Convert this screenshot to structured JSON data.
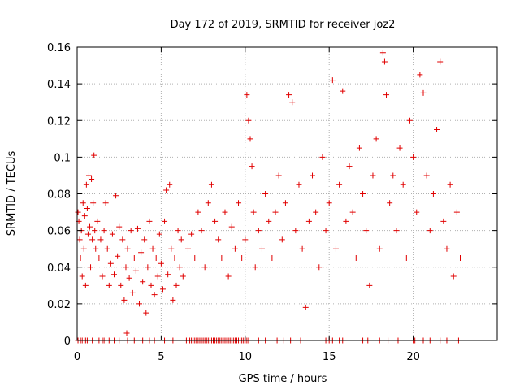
{
  "chart_data": {
    "type": "scatter",
    "title": "Day 172 of 2019, SRMTID for receiver joz2",
    "xlabel": "GPS time / hours",
    "ylabel": "SRMTID / TECUs",
    "xlim": [
      0,
      25
    ],
    "ylim": [
      0,
      0.16
    ],
    "xticks": [
      0,
      5,
      10,
      15,
      20
    ],
    "xtick_labels": [
      "0",
      "5",
      "10",
      "15",
      "20"
    ],
    "yticks": [
      0,
      0.02,
      0.04,
      0.06,
      0.08,
      0.1,
      0.12,
      0.14,
      0.16
    ],
    "ytick_labels": [
      "0",
      "0.02",
      "0.04",
      "0.06",
      "0.08",
      "0.1",
      "0.12",
      "0.14",
      "0.16"
    ],
    "grid": true,
    "marker": "+",
    "color": "#e00000",
    "series": [
      {
        "points": [
          [
            0.05,
            0.07
          ],
          [
            0.1,
            0.065
          ],
          [
            0.15,
            0.055
          ],
          [
            0.2,
            0.045
          ],
          [
            0.25,
            0.06
          ],
          [
            0.3,
            0.035
          ],
          [
            0.35,
            0.075
          ],
          [
            0.4,
            0.05
          ],
          [
            0.45,
            0.068
          ],
          [
            0.5,
            0.03
          ],
          [
            0.55,
            0.085
          ],
          [
            0.6,
            0.072
          ],
          [
            0.65,
            0.058
          ],
          [
            0.7,
            0.09
          ],
          [
            0.75,
            0.062
          ],
          [
            0.8,
            0.04
          ],
          [
            0.85,
            0.088
          ],
          [
            0.9,
            0.055
          ],
          [
            0.95,
            0.075
          ],
          [
            1.0,
            0.101
          ],
          [
            1.05,
            0.06
          ],
          [
            1.1,
            0.05
          ],
          [
            1.2,
            0.065
          ],
          [
            1.3,
            0.045
          ],
          [
            1.4,
            0.055
          ],
          [
            1.5,
            0.035
          ],
          [
            1.6,
            0.06
          ],
          [
            1.7,
            0.075
          ],
          [
            1.8,
            0.05
          ],
          [
            1.9,
            0.03
          ],
          [
            2.0,
            0.042
          ],
          [
            2.1,
            0.058
          ],
          [
            2.2,
            0.036
          ],
          [
            2.3,
            0.079
          ],
          [
            2.4,
            0.046
          ],
          [
            2.5,
            0.062
          ],
          [
            2.6,
            0.03
          ],
          [
            2.7,
            0.055
          ],
          [
            2.8,
            0.022
          ],
          [
            2.9,
            0.04
          ],
          [
            2.95,
            0.004
          ],
          [
            3.0,
            0.05
          ],
          [
            3.1,
            0.034
          ],
          [
            3.2,
            0.06
          ],
          [
            3.3,
            0.026
          ],
          [
            3.4,
            0.045
          ],
          [
            3.5,
            0.038
          ],
          [
            3.6,
            0.061
          ],
          [
            3.7,
            0.02
          ],
          [
            3.8,
            0.048
          ],
          [
            3.9,
            0.032
          ],
          [
            4.0,
            0.055
          ],
          [
            4.1,
            0.015
          ],
          [
            4.2,
            0.04
          ],
          [
            4.3,
            0.065
          ],
          [
            4.4,
            0.03
          ],
          [
            4.5,
            0.05
          ],
          [
            4.6,
            0.025
          ],
          [
            4.7,
            0.045
          ],
          [
            4.8,
            0.035
          ],
          [
            4.9,
            0.058
          ],
          [
            5.0,
            0.042
          ],
          [
            5.1,
            0.028
          ],
          [
            5.2,
            0.065
          ],
          [
            5.3,
            0.082
          ],
          [
            5.4,
            0.036
          ],
          [
            5.5,
            0.085
          ],
          [
            5.6,
            0.05
          ],
          [
            5.7,
            0.022
          ],
          [
            5.8,
            0.045
          ],
          [
            5.9,
            0.03
          ],
          [
            6.0,
            0.06
          ],
          [
            6.1,
            0.04
          ],
          [
            6.2,
            0.055
          ],
          [
            6.3,
            0.035
          ],
          [
            6.6,
            0.05
          ],
          [
            6.8,
            0.058
          ],
          [
            7.0,
            0.045
          ],
          [
            7.2,
            0.07
          ],
          [
            7.4,
            0.06
          ],
          [
            7.6,
            0.04
          ],
          [
            7.8,
            0.075
          ],
          [
            8.0,
            0.085
          ],
          [
            8.2,
            0.065
          ],
          [
            8.4,
            0.055
          ],
          [
            8.6,
            0.045
          ],
          [
            8.8,
            0.07
          ],
          [
            9.0,
            0.035
          ],
          [
            9.2,
            0.062
          ],
          [
            9.4,
            0.05
          ],
          [
            9.6,
            0.075
          ],
          [
            9.8,
            0.045
          ],
          [
            10.0,
            0.055
          ],
          [
            10.1,
            0.134
          ],
          [
            10.2,
            0.12
          ],
          [
            10.3,
            0.11
          ],
          [
            10.4,
            0.095
          ],
          [
            10.5,
            0.07
          ],
          [
            10.6,
            0.04
          ],
          [
            10.8,
            0.06
          ],
          [
            11.0,
            0.05
          ],
          [
            11.2,
            0.08
          ],
          [
            11.4,
            0.065
          ],
          [
            11.6,
            0.045
          ],
          [
            11.8,
            0.07
          ],
          [
            12.0,
            0.09
          ],
          [
            12.2,
            0.055
          ],
          [
            12.4,
            0.075
          ],
          [
            12.6,
            0.134
          ],
          [
            12.8,
            0.13
          ],
          [
            13.0,
            0.06
          ],
          [
            13.2,
            0.085
          ],
          [
            13.4,
            0.05
          ],
          [
            13.6,
            0.018
          ],
          [
            13.8,
            0.065
          ],
          [
            14.0,
            0.09
          ],
          [
            14.2,
            0.07
          ],
          [
            14.4,
            0.04
          ],
          [
            14.6,
            0.1
          ],
          [
            14.8,
            0.06
          ],
          [
            15.0,
            0.075
          ],
          [
            15.2,
            0.142
          ],
          [
            15.4,
            0.05
          ],
          [
            15.6,
            0.085
          ],
          [
            15.8,
            0.136
          ],
          [
            16.0,
            0.065
          ],
          [
            16.2,
            0.095
          ],
          [
            16.4,
            0.07
          ],
          [
            16.6,
            0.045
          ],
          [
            16.8,
            0.105
          ],
          [
            17.0,
            0.08
          ],
          [
            17.2,
            0.06
          ],
          [
            17.4,
            0.03
          ],
          [
            17.6,
            0.09
          ],
          [
            17.8,
            0.11
          ],
          [
            18.0,
            0.05
          ],
          [
            18.2,
            0.157
          ],
          [
            18.3,
            0.152
          ],
          [
            18.4,
            0.134
          ],
          [
            18.6,
            0.075
          ],
          [
            18.8,
            0.09
          ],
          [
            19.0,
            0.06
          ],
          [
            19.2,
            0.105
          ],
          [
            19.4,
            0.085
          ],
          [
            19.6,
            0.045
          ],
          [
            19.8,
            0.12
          ],
          [
            20.0,
            0.1
          ],
          [
            20.2,
            0.07
          ],
          [
            20.4,
            0.145
          ],
          [
            20.6,
            0.135
          ],
          [
            20.8,
            0.09
          ],
          [
            21.0,
            0.06
          ],
          [
            21.2,
            0.08
          ],
          [
            21.4,
            0.115
          ],
          [
            21.6,
            0.152
          ],
          [
            21.8,
            0.065
          ],
          [
            22.0,
            0.05
          ],
          [
            22.2,
            0.085
          ],
          [
            22.4,
            0.035
          ],
          [
            22.6,
            0.07
          ],
          [
            22.8,
            0.045
          ]
        ]
      }
    ],
    "zero_points_x": [
      0.05,
      0.2,
      0.3,
      0.5,
      0.6,
      0.9,
      1.3,
      1.5,
      1.6,
      1.9,
      2.2,
      2.5,
      3.0,
      3.4,
      3.9,
      4.3,
      4.6,
      5.2,
      5.7,
      6.5,
      6.6,
      6.7,
      6.8,
      6.9,
      7.0,
      7.1,
      7.2,
      7.3,
      7.4,
      7.5,
      7.6,
      7.7,
      7.8,
      7.9,
      8.0,
      8.1,
      8.2,
      8.3,
      8.4,
      8.5,
      8.6,
      8.7,
      8.8,
      8.9,
      9.0,
      9.1,
      9.2,
      9.3,
      9.4,
      9.5,
      9.6,
      9.7,
      9.8,
      9.9,
      10.0,
      10.1,
      10.2,
      10.8,
      11.2,
      11.9,
      12.3,
      12.7,
      13.3,
      14.8,
      15.0,
      15.2,
      15.6,
      15.8,
      17.0,
      17.3,
      18.0,
      18.5,
      19.1,
      20.0,
      20.1,
      20.6,
      21.0,
      21.6,
      22.0,
      22.7
    ]
  }
}
